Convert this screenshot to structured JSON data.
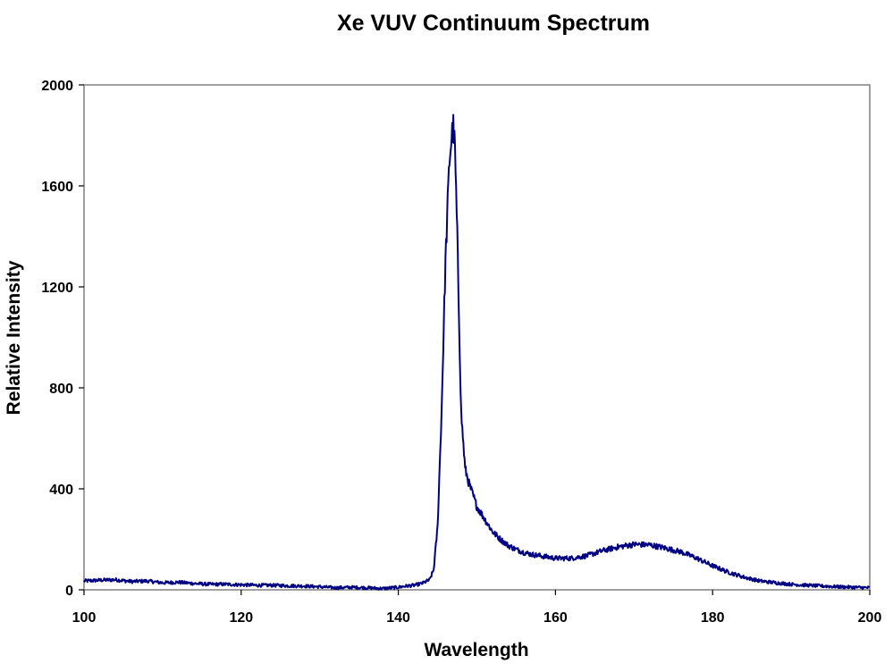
{
  "chart_data": {
    "type": "line",
    "title": "Xe VUV Continuum Spectrum",
    "xlabel": "Wavelength",
    "ylabel": "Relative Intensity",
    "xlim": [
      100,
      200
    ],
    "ylim": [
      0,
      2000
    ],
    "xticks": [
      100,
      120,
      140,
      160,
      180,
      200
    ],
    "yticks": [
      0,
      400,
      800,
      1200,
      1600,
      2000
    ],
    "grid": false,
    "legend": "none",
    "line_color": "#000080",
    "plot_border_color": "#808080",
    "series": [
      {
        "values_x": [
          100,
          102,
          104,
          106,
          108,
          110,
          112,
          114,
          116,
          118,
          120,
          122,
          124,
          126,
          128,
          130,
          132,
          134,
          136,
          138,
          140,
          141,
          142,
          143,
          144,
          144.5,
          145,
          145.5,
          146,
          146.5,
          146.8,
          147,
          147.2,
          147.5,
          148,
          148.5,
          149,
          150,
          151,
          152,
          153,
          154,
          155,
          156,
          157,
          158,
          159,
          160,
          162,
          164,
          166,
          168,
          170,
          172,
          174,
          176,
          178,
          180,
          182,
          184,
          186,
          188,
          190,
          192,
          194,
          196,
          198,
          200
        ],
        "values_y": [
          35,
          38,
          40,
          33,
          35,
          28,
          30,
          25,
          22,
          22,
          20,
          18,
          18,
          16,
          15,
          12,
          8,
          10,
          8,
          5,
          10,
          15,
          18,
          25,
          40,
          80,
          250,
          700,
          1300,
          1700,
          1800,
          1830,
          1750,
          1400,
          700,
          480,
          420,
          330,
          280,
          230,
          200,
          175,
          160,
          148,
          140,
          135,
          130,
          125,
          125,
          135,
          155,
          170,
          180,
          178,
          165,
          150,
          125,
          95,
          70,
          50,
          35,
          28,
          22,
          18,
          15,
          12,
          10,
          8
        ]
      }
    ]
  }
}
